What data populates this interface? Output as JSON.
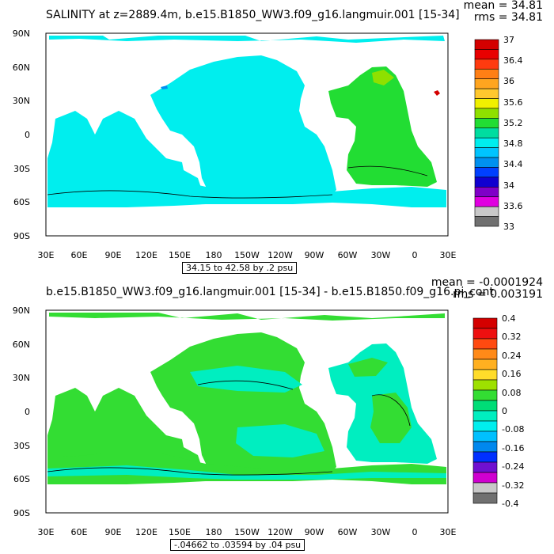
{
  "panels": [
    {
      "id": "top",
      "title": "SALINITY at z=2889.4m, b.e15.B1850_WW3.f09_g16.langmuir.001 [15-34]",
      "stats": {
        "mean": "mean = 34.81",
        "rms": "rms = 34.81"
      },
      "lat_labels": [
        "90N",
        "60N",
        "30N",
        "0",
        "30S",
        "60S",
        "90S"
      ],
      "lon_labels": [
        "30E",
        "60E",
        "90E",
        "120E",
        "150E",
        "180",
        "150W",
        "120W",
        "90W",
        "60W",
        "30W",
        "0",
        "30E"
      ],
      "range_label": "34.15 to 42.58 by .2 psu",
      "colorbar": {
        "labels": [
          "37",
          "36.4",
          "36",
          "35.6",
          "35.2",
          "34.8",
          "34.4",
          "34",
          "33.6",
          "33"
        ],
        "colors": [
          "#d40000",
          "#e80000",
          "#ff3b0f",
          "#ff7f15",
          "#ffa51f",
          "#ffc82e",
          "#f0f000",
          "#8fe000",
          "#22dd33",
          "#00dda0",
          "#00eeee",
          "#00c4ff",
          "#0090f0",
          "#0040ff",
          "#1000d0",
          "#8000c8",
          "#e000e0",
          "#c8c8c8",
          "#707070"
        ]
      }
    },
    {
      "id": "bottom",
      "title": "b.e15.B1850_WW3.f09_g16.langmuir.001 [15-34] - b.e15.B1850.f09_g16.pi_cont",
      "stats": {
        "mean": "mean = -0.0001924",
        "rms": "rms = 0.003191"
      },
      "lat_labels": [
        "90N",
        "60N",
        "30N",
        "0",
        "30S",
        "60S",
        "90S"
      ],
      "lon_labels": [
        "30E",
        "60E",
        "90E",
        "120E",
        "150E",
        "180",
        "150W",
        "120W",
        "90W",
        "60W",
        "30W",
        "0",
        "30E"
      ],
      "range_label": "-.04662 to .03594 by .04 psu",
      "colorbar": {
        "labels": [
          "0.4",
          "0.32",
          "0.24",
          "0.16",
          "0.08",
          "0",
          "-0.08",
          "-0.16",
          "-0.24",
          "-0.32",
          "-0.4"
        ],
        "colors": [
          "#d40000",
          "#ee1010",
          "#ff4a10",
          "#ff8a18",
          "#ffb020",
          "#ffdc2a",
          "#9ee000",
          "#33dd33",
          "#00dd77",
          "#00eec0",
          "#00eeee",
          "#00c0ff",
          "#0088ee",
          "#0030ff",
          "#7010d0",
          "#d000d0",
          "#c8c8c8",
          "#707070"
        ]
      }
    }
  ]
}
